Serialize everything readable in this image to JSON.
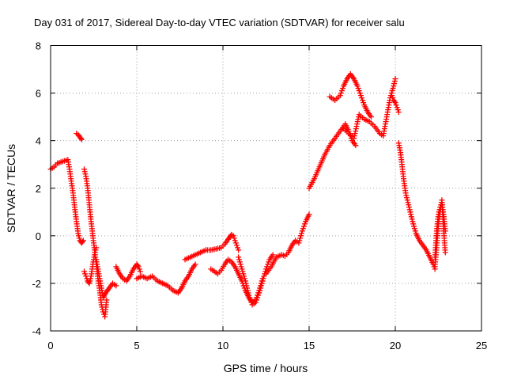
{
  "chart_data": {
    "type": "scatter",
    "title": "Day 031 of 2017, Sidereal Day-to-day VTEC variation (SDTVAR) for receiver salu",
    "xlabel": "GPS time / hours",
    "ylabel": "SDTVAR / TECUs",
    "xlim": [
      0,
      25
    ],
    "ylim": [
      -4,
      8
    ],
    "xticks": [
      "0",
      "5",
      "10",
      "15",
      "20",
      "25"
    ],
    "yticks": [
      "-4",
      "-2",
      "0",
      "2",
      "4",
      "6",
      "8"
    ],
    "xtick_values": [
      0,
      5,
      10,
      15,
      20,
      25
    ],
    "ytick_values": [
      -4,
      -2,
      0,
      2,
      4,
      6,
      8
    ],
    "grid": true,
    "marker": "plus",
    "color": "#ff0000",
    "series": [
      {
        "x": [
          0.0,
          0.2,
          0.4,
          0.6,
          0.8,
          1.0,
          1.1,
          1.2,
          1.3,
          1.4,
          1.5,
          1.6,
          1.7,
          1.8,
          1.9
        ],
        "y": [
          2.8,
          2.9,
          3.05,
          3.1,
          3.15,
          3.2,
          2.8,
          2.3,
          1.8,
          1.2,
          0.6,
          0.1,
          -0.2,
          -0.3,
          -0.2
        ]
      },
      {
        "x": [
          1.5,
          1.6,
          1.7,
          1.8
        ],
        "y": [
          4.3,
          4.25,
          4.15,
          4.05
        ]
      },
      {
        "x": [
          1.95,
          2.05,
          2.15,
          2.25,
          2.35,
          2.45,
          2.55,
          2.65,
          2.75,
          2.85,
          2.95,
          3.05,
          3.15,
          3.25
        ],
        "y": [
          2.8,
          2.5,
          2.0,
          1.3,
          0.6,
          0.0,
          -0.6,
          -1.2,
          -1.8,
          -2.3,
          -2.9,
          -3.2,
          -3.4,
          -2.7
        ]
      },
      {
        "x": [
          1.95,
          2.05,
          2.15,
          2.25,
          2.35,
          2.45,
          2.55,
          2.65
        ],
        "y": [
          -1.5,
          -1.7,
          -1.9,
          -2.0,
          -1.7,
          -1.2,
          -0.8,
          -0.5
        ]
      },
      {
        "x": [
          2.65,
          2.75,
          2.85,
          2.95,
          3.05,
          3.2,
          3.4,
          3.6,
          3.8
        ],
        "y": [
          -1.0,
          -1.4,
          -1.8,
          -2.2,
          -2.6,
          -2.4,
          -2.2,
          -2.0,
          -2.1
        ]
      },
      {
        "x": [
          3.8,
          4.0,
          4.2,
          4.4,
          4.6,
          4.8,
          5.0,
          5.1,
          5.2
        ],
        "y": [
          -1.3,
          -1.6,
          -1.8,
          -1.9,
          -1.7,
          -1.4,
          -1.2,
          -1.3,
          -1.5
        ]
      },
      {
        "x": [
          5.0,
          5.3,
          5.6,
          5.9,
          6.2,
          6.5,
          6.8,
          7.1,
          7.4,
          7.6,
          7.8,
          8.0,
          8.2,
          8.4
        ],
        "y": [
          -1.8,
          -1.7,
          -1.8,
          -1.7,
          -1.9,
          -2.0,
          -2.1,
          -2.3,
          -2.4,
          -2.2,
          -1.9,
          -1.7,
          -1.4,
          -1.2
        ]
      },
      {
        "x": [
          7.8,
          8.1,
          8.4,
          8.7,
          9.0,
          9.3,
          9.6,
          9.9,
          10.1,
          10.3,
          10.4,
          10.5,
          10.6,
          10.7,
          10.8,
          10.9
        ],
        "y": [
          -1.0,
          -0.9,
          -0.8,
          -0.7,
          -0.6,
          -0.6,
          -0.55,
          -0.5,
          -0.35,
          -0.15,
          -0.05,
          0.05,
          0.0,
          -0.2,
          -0.4,
          -0.6
        ]
      },
      {
        "x": [
          9.3,
          9.5,
          9.7,
          9.9,
          10.1,
          10.3,
          10.5,
          10.7,
          10.9,
          11.1,
          11.3,
          11.5,
          11.7,
          11.9,
          12.1,
          12.3
        ],
        "y": [
          -1.4,
          -1.5,
          -1.6,
          -1.45,
          -1.2,
          -1.0,
          -1.1,
          -1.3,
          -1.6,
          -1.9,
          -2.3,
          -2.6,
          -2.8,
          -2.7,
          -2.3,
          -1.8
        ]
      },
      {
        "x": [
          10.9,
          11.1,
          11.3,
          11.5,
          11.7,
          11.9,
          12.1,
          12.3,
          12.5,
          12.7,
          12.9
        ],
        "y": [
          -0.9,
          -1.4,
          -1.9,
          -2.5,
          -2.9,
          -2.8,
          -2.4,
          -1.9,
          -1.4,
          -1.0,
          -0.8
        ]
      },
      {
        "x": [
          12.5,
          12.8,
          13.1,
          13.4,
          13.6,
          13.8,
          14.0,
          14.2,
          14.4,
          14.6,
          14.8,
          15.0
        ],
        "y": [
          -1.6,
          -1.3,
          -0.9,
          -0.8,
          -0.85,
          -0.7,
          -0.4,
          -0.2,
          -0.3,
          0.2,
          0.6,
          0.9
        ]
      },
      {
        "x": [
          15.0,
          15.3,
          15.6,
          15.9,
          16.2,
          16.5,
          16.8,
          17.1,
          17.3,
          17.5,
          17.7
        ],
        "y": [
          2.0,
          2.4,
          2.9,
          3.4,
          3.8,
          4.1,
          4.4,
          4.7,
          4.4,
          4.0,
          3.8
        ]
      },
      {
        "x": [
          16.2,
          16.5,
          16.8,
          17.0,
          17.2,
          17.4,
          17.6,
          17.8,
          18.0,
          18.2,
          18.4,
          18.6
        ],
        "y": [
          5.85,
          5.7,
          5.9,
          6.3,
          6.6,
          6.8,
          6.6,
          6.3,
          5.9,
          5.5,
          5.2,
          5.0
        ]
      },
      {
        "x": [
          17.0,
          17.3,
          17.6,
          17.9,
          18.2,
          18.5,
          18.8,
          19.1,
          19.3,
          19.5,
          19.7,
          19.9,
          20.0
        ],
        "y": [
          4.5,
          4.3,
          4.1,
          5.1,
          4.9,
          4.8,
          4.6,
          4.3,
          4.2,
          5.0,
          5.8,
          6.3,
          6.6
        ]
      },
      {
        "x": [
          19.8,
          19.9,
          20.0,
          20.1,
          20.2
        ],
        "y": [
          5.9,
          5.7,
          5.6,
          5.4,
          5.2
        ]
      },
      {
        "x": [
          20.2,
          20.3,
          20.4,
          20.5,
          20.6,
          20.8,
          21.0,
          21.2,
          21.4,
          21.6,
          21.8,
          22.0,
          22.2,
          22.3
        ],
        "y": [
          3.9,
          3.5,
          2.9,
          2.3,
          1.8,
          1.2,
          0.6,
          0.1,
          -0.2,
          -0.4,
          -0.6,
          -0.9,
          -1.2,
          -1.4
        ]
      },
      {
        "x": [
          22.3,
          22.4,
          22.5,
          22.6,
          22.7,
          22.8,
          22.9
        ],
        "y": [
          -0.9,
          0.2,
          0.9,
          1.2,
          1.4,
          0.9,
          0.2
        ]
      },
      {
        "x": [
          22.3,
          22.4,
          22.5,
          22.6,
          22.7,
          22.8,
          22.9
        ],
        "y": [
          -1.3,
          -0.5,
          0.5,
          1.0,
          1.5,
          0.3,
          -0.7
        ]
      }
    ]
  }
}
